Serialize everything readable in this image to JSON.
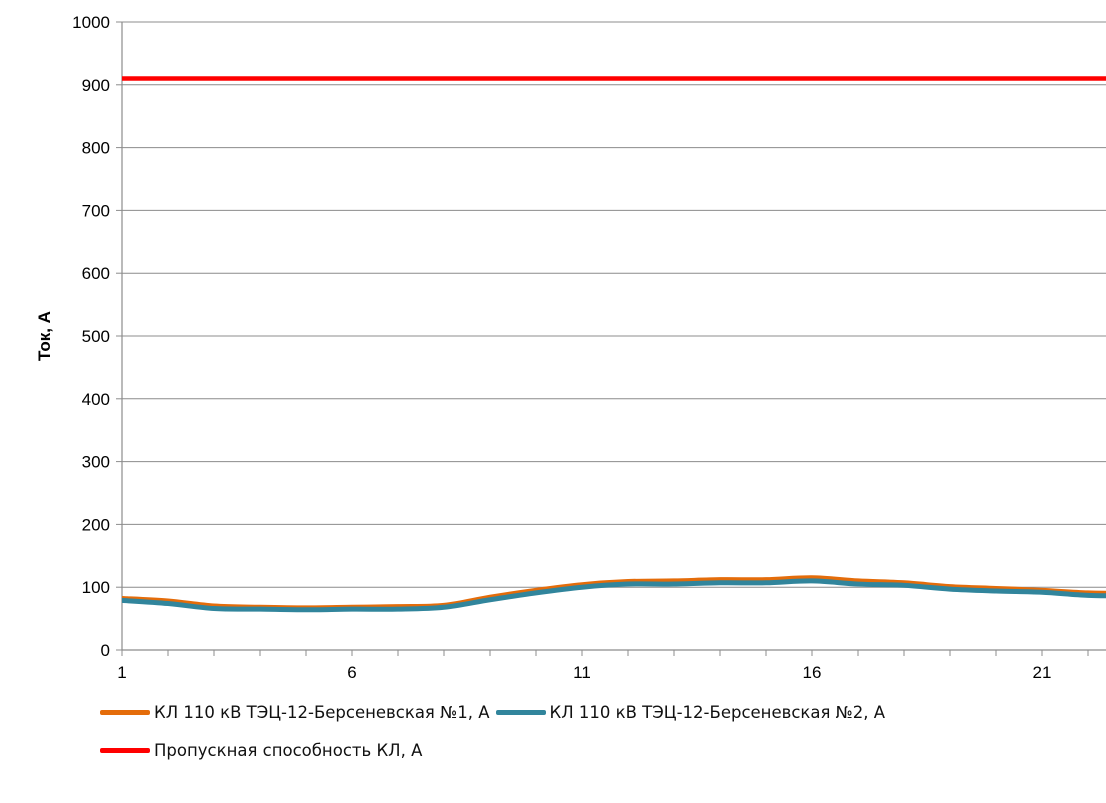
{
  "chart_data": {
    "type": "line",
    "title": "",
    "xlabel": "",
    "ylabel": "Ток, А",
    "ylim": [
      0,
      1000
    ],
    "yticks": [
      "0",
      "100",
      "200",
      "300",
      "400",
      "500",
      "600",
      "700",
      "800",
      "900",
      "1000"
    ],
    "xticks": [
      "1",
      "6",
      "11",
      "16",
      "21"
    ],
    "x": [
      1,
      2,
      3,
      4,
      5,
      6,
      7,
      8,
      9,
      10,
      11,
      12,
      13,
      14,
      15,
      16,
      17,
      18,
      19,
      20,
      21,
      22,
      23
    ],
    "grid": true,
    "legend_position": "bottom",
    "series": [
      {
        "name": "КЛ 110 кВ  ТЭЦ-12-Берсеневская №1, А",
        "color": "#E46C0A",
        "values": [
          82,
          78,
          70,
          68,
          67,
          68,
          69,
          71,
          84,
          95,
          104,
          109,
          110,
          112,
          112,
          115,
          110,
          107,
          101,
          98,
          95,
          91,
          90
        ]
      },
      {
        "name": "КЛ 110 кВ  ТЭЦ-12-Берсеневская №2, А",
        "color": "#31859C",
        "values": [
          79,
          74,
          66,
          65,
          64,
          65,
          65,
          68,
          80,
          91,
          100,
          105,
          105,
          107,
          107,
          110,
          105,
          103,
          97,
          94,
          92,
          87,
          86
        ]
      },
      {
        "name": "Пропускная способность КЛ, А",
        "color": "#FF0000",
        "values": [
          910,
          910,
          910,
          910,
          910,
          910,
          910,
          910,
          910,
          910,
          910,
          910,
          910,
          910,
          910,
          910,
          910,
          910,
          910,
          910,
          910,
          910,
          910
        ]
      }
    ]
  }
}
